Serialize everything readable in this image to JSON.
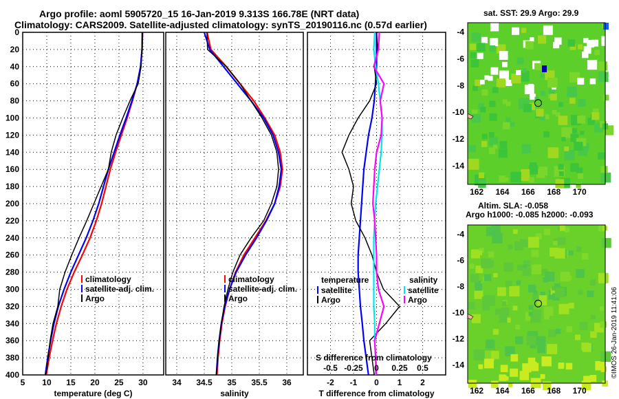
{
  "title_line1": "Argo profile: aoml 5905720_15 16-Jan-2019 9.313S 166.78E (NRT data)",
  "title_line2": "Climatology: CARS2009. Satellite-adjusted climatology: synTS_20190116.nc (0.57d earlier)",
  "map1_title": "sat. SST: 29.9 Argo: 29.9",
  "map2_title1": "Altim. SLA: -0.058",
  "map2_title2": "Argo h1000: -0.085 h2000: -0.093",
  "credit": "©IMOS 26-Jan-2019 11:41:06",
  "colors": {
    "climatology": "#ff0000",
    "satellite_clim": "#0000ff",
    "argo": "#000000",
    "sal_satellite": "#00e5ee",
    "sal_argo": "#ff00ff"
  },
  "chart_data": [
    {
      "type": "line",
      "xlabel": "temperature (deg C)",
      "ylabel": "depth",
      "xlim": [
        5,
        34.3
      ],
      "ylim": [
        400,
        0
      ],
      "xticks": [
        5,
        10,
        15,
        20,
        25,
        30
      ],
      "yticks": [
        0,
        20,
        40,
        60,
        80,
        100,
        120,
        140,
        160,
        180,
        200,
        220,
        240,
        260,
        280,
        300,
        320,
        340,
        360,
        380,
        400
      ],
      "legend": [
        "climatology",
        "satellite-adj. clim.",
        "Argo"
      ],
      "depth": [
        0,
        20,
        40,
        60,
        80,
        100,
        120,
        140,
        160,
        180,
        200,
        220,
        240,
        260,
        280,
        300,
        320,
        340,
        360,
        380,
        400
      ],
      "series": [
        {
          "name": "climatology",
          "color": "#ff0000",
          "values": [
            29.9,
            29.8,
            29.5,
            28.8,
            27.8,
            26.7,
            25.5,
            24.3,
            23.2,
            22.3,
            21.4,
            20.3,
            19.0,
            17.4,
            15.7,
            14.2,
            13.0,
            12.0,
            11.2,
            10.5,
            9.9
          ]
        },
        {
          "name": "satellite-adj. clim.",
          "color": "#0000ff",
          "values": [
            29.9,
            29.8,
            29.5,
            28.8,
            27.7,
            26.5,
            25.2,
            24.0,
            22.8,
            21.8,
            20.8,
            19.6,
            18.2,
            16.6,
            15.0,
            13.6,
            12.4,
            11.5,
            10.8,
            10.2,
            9.7
          ]
        },
        {
          "name": "Argo",
          "color": "#000000",
          "values": [
            29.8,
            29.8,
            29.6,
            29.0,
            27.3,
            25.8,
            24.4,
            23.4,
            22.8,
            21.3,
            19.8,
            18.3,
            16.7,
            15.2,
            13.8,
            12.7,
            12.3,
            11.3,
            10.7,
            10.3,
            9.8
          ]
        }
      ]
    },
    {
      "type": "line",
      "xlabel": "salinity",
      "xlim": [
        33.8,
        36.3
      ],
      "ylim": [
        400,
        0
      ],
      "xticks": [
        34,
        34.5,
        35,
        35.5,
        36
      ],
      "legend": [
        "climatology",
        "satellite-adj. clim.",
        "Argo"
      ],
      "depth": [
        0,
        20,
        40,
        60,
        80,
        100,
        120,
        140,
        160,
        180,
        200,
        220,
        240,
        260,
        280,
        300,
        320,
        340,
        360,
        380,
        400
      ],
      "series": [
        {
          "name": "climatology",
          "color": "#ff0000",
          "values": [
            34.55,
            34.62,
            34.9,
            35.15,
            35.4,
            35.6,
            35.78,
            35.88,
            35.92,
            35.88,
            35.78,
            35.62,
            35.42,
            35.22,
            35.07,
            34.96,
            34.88,
            34.82,
            34.78,
            34.75,
            34.73
          ]
        },
        {
          "name": "satellite-adj. clim.",
          "color": "#0000ff",
          "values": [
            34.5,
            34.6,
            34.85,
            35.1,
            35.35,
            35.58,
            35.75,
            35.85,
            35.9,
            35.86,
            35.78,
            35.63,
            35.45,
            35.25,
            35.08,
            34.96,
            34.87,
            34.81,
            34.77,
            34.74,
            34.72
          ]
        },
        {
          "name": "Argo",
          "color": "#000000",
          "values": [
            34.55,
            34.56,
            34.9,
            35.15,
            35.35,
            35.55,
            35.72,
            35.82,
            35.85,
            35.82,
            35.72,
            35.58,
            35.35,
            35.15,
            35.02,
            34.93,
            34.86,
            34.81,
            34.77,
            34.74,
            34.72
          ]
        }
      ]
    },
    {
      "type": "line",
      "xlabel": "T difference from climatology",
      "x2label": "S difference from climatology",
      "xlim": [
        -3,
        3
      ],
      "x2lim": [
        -0.75,
        0.75
      ],
      "ylim": [
        400,
        0
      ],
      "xticks": [
        -2,
        -1,
        0,
        1,
        2
      ],
      "x2ticks": [
        -0.5,
        -0.25,
        0,
        0.25,
        0.5
      ],
      "legend": {
        "temperature": [
          "satellite",
          "Argo"
        ],
        "salinity": [
          "satellite",
          "Argo"
        ]
      },
      "depth": [
        0,
        20,
        40,
        60,
        80,
        100,
        120,
        140,
        160,
        180,
        200,
        220,
        240,
        260,
        280,
        300,
        320,
        340,
        360,
        380,
        400
      ],
      "series": [
        {
          "name": "temperature satellite",
          "axis": "T",
          "color": "#0000ff",
          "values": [
            0,
            0,
            0,
            -0.05,
            -0.1,
            -0.2,
            -0.35,
            -0.45,
            -0.55,
            -0.6,
            -0.65,
            -0.7,
            -0.75,
            -0.8,
            -0.8,
            -0.75,
            -0.7,
            -0.62,
            -0.55,
            -0.45,
            -0.35
          ]
        },
        {
          "name": "temperature Argo",
          "axis": "T",
          "color": "#000000",
          "values": [
            0,
            0.05,
            -0.1,
            0,
            -0.3,
            -0.8,
            -1.2,
            -1.5,
            -1.2,
            -1.0,
            -1.1,
            -0.9,
            -0.5,
            -0.2,
            0,
            0.3,
            1.0,
            0.4,
            -0.3,
            -0.2,
            -0.1
          ]
        },
        {
          "name": "salinity satellite",
          "axis": "S",
          "color": "#00e5ee",
          "values": [
            -0.02,
            -0.03,
            -0.01,
            0.02,
            0.04,
            0.06,
            0.06,
            0.05,
            0.03,
            0.01,
            -0.01,
            -0.02,
            -0.03,
            -0.03,
            -0.03,
            -0.03,
            -0.03,
            -0.02,
            -0.02,
            -0.01,
            -0.01
          ]
        },
        {
          "name": "salinity Argo",
          "axis": "S",
          "color": "#ff00ff",
          "values": [
            0.03,
            0.02,
            -0.03,
            0.08,
            0.04,
            0.06,
            0.05,
            0.0,
            -0.02,
            -0.03,
            -0.04,
            -0.02,
            -0.01,
            0,
            0,
            0.02,
            0.08,
            0.03,
            -0.02,
            -0.01,
            0
          ]
        }
      ]
    }
  ],
  "maps": {
    "lat_ticks": [
      -4,
      -6,
      -8,
      -10,
      -12,
      -14
    ],
    "lon_ticks": [
      162,
      164,
      166,
      168,
      170
    ]
  }
}
